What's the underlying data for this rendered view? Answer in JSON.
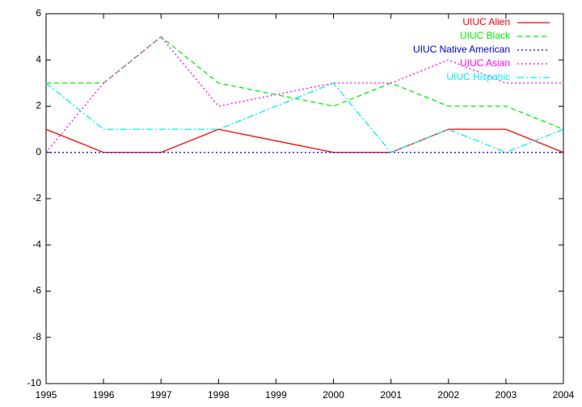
{
  "chart_data": {
    "type": "line",
    "x": [
      1995,
      1996,
      1997,
      1998,
      1999,
      2000,
      2001,
      2002,
      2003,
      2004
    ],
    "series": [
      {
        "name": "UIUC Alien",
        "color": "#ff0000",
        "dash": "solid",
        "values": [
          1,
          0,
          0,
          1,
          0.5,
          0,
          0,
          1,
          1,
          0
        ]
      },
      {
        "name": "UIUC Black",
        "color": "#00ee00",
        "dash": "dashed",
        "values": [
          3,
          3,
          5,
          3,
          2.5,
          2,
          3,
          2,
          2,
          1
        ]
      },
      {
        "name": "UIUC Native American",
        "color": "#0000cc",
        "dash": "dotted",
        "values": [
          0,
          0,
          0,
          0,
          0,
          0,
          0,
          0,
          0,
          0
        ]
      },
      {
        "name": "UIUC Asian",
        "color": "#ff00ff",
        "dash": "dotted",
        "values": [
          0,
          3,
          5,
          2,
          2.5,
          3,
          3,
          4,
          3,
          3
        ]
      },
      {
        "name": "UIUC Hispanic",
        "color": "#00eeee",
        "dash": "dashdot",
        "values": [
          3,
          1,
          1,
          1,
          2,
          3,
          0,
          1,
          0,
          1
        ]
      }
    ],
    "xlim": [
      1995,
      2004
    ],
    "xticks": [
      1995,
      1996,
      1997,
      1998,
      1999,
      2000,
      2001,
      2002,
      2003,
      2004
    ],
    "ylim": [
      -10,
      6
    ],
    "yticks": [
      -10,
      -8,
      -6,
      -4,
      -2,
      0,
      2,
      4,
      6
    ],
    "grid": false,
    "legend": "top right"
  }
}
